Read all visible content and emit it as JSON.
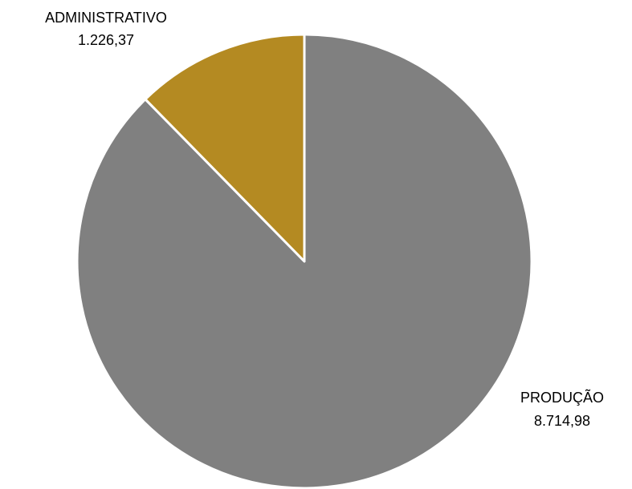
{
  "chart_data": {
    "type": "pie",
    "title": "",
    "start_angle_deg": 0,
    "direction": "clockwise",
    "slices": [
      {
        "name": "PRODUÇÃO",
        "value": 8714.98,
        "value_label": "8.714,98",
        "color": "#808080"
      },
      {
        "name": "ADMINISTRATIVO",
        "value": 1226.37,
        "value_label": "1.226,37",
        "color": "#B48A22"
      }
    ],
    "legend": "none"
  }
}
